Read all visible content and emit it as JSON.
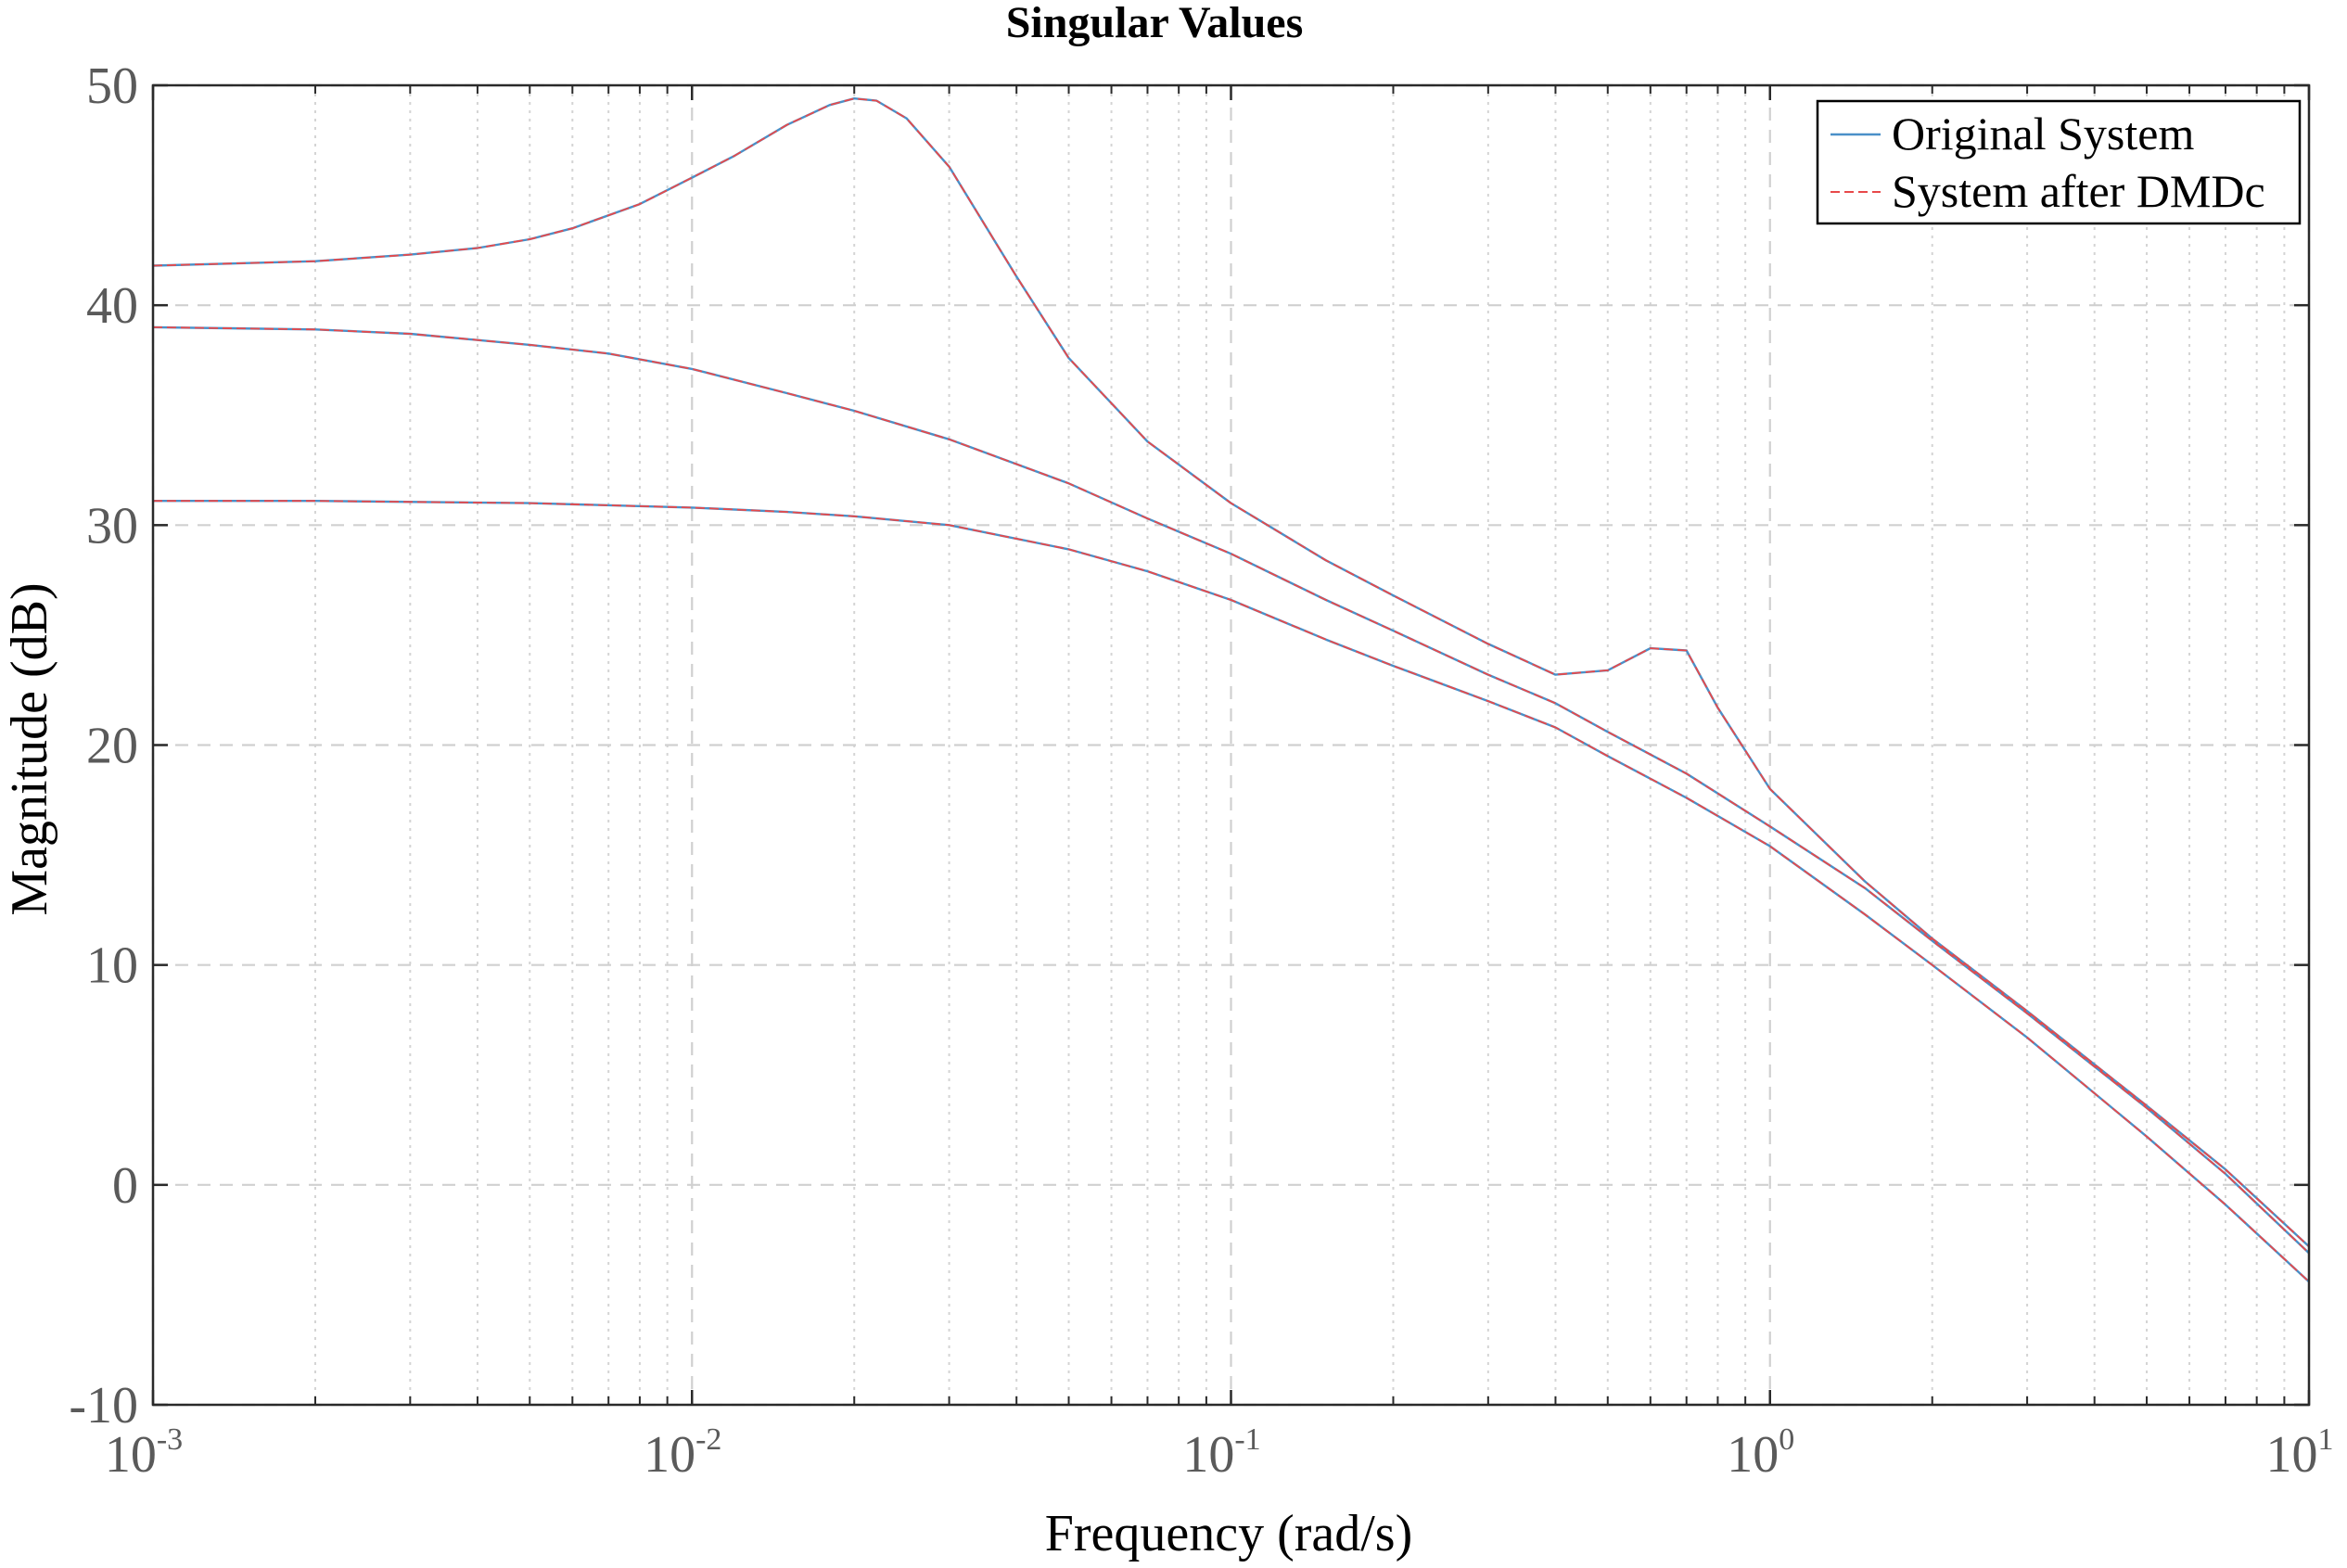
{
  "chart_data": {
    "type": "line",
    "title": "Singular Values",
    "xlabel": "Frequency (rad/s)",
    "ylabel": "Magnitude (dB)",
    "xscale": "log",
    "xlim": [
      0.001,
      10
    ],
    "ylim": [
      -10,
      50
    ],
    "x_ticks": [
      {
        "base": "10",
        "exp": "-3",
        "value": 0.001
      },
      {
        "base": "10",
        "exp": "-2",
        "value": 0.01
      },
      {
        "base": "10",
        "exp": "-1",
        "value": 0.1
      },
      {
        "base": "10",
        "exp": "0",
        "value": 1
      },
      {
        "base": "10",
        "exp": "1",
        "value": 10
      }
    ],
    "y_ticks": [
      {
        "label": "-10",
        "value": -10
      },
      {
        "label": "0",
        "value": 0
      },
      {
        "label": "10",
        "value": 10
      },
      {
        "label": "20",
        "value": 20
      },
      {
        "label": "30",
        "value": 30
      },
      {
        "label": "40",
        "value": 40
      },
      {
        "label": "50",
        "value": 50
      }
    ],
    "grid": true,
    "minor_grid": true,
    "legend_position": "top-right",
    "legend": [
      "Original System",
      "System after DMDc"
    ],
    "colors": {
      "original": "#4a90c8",
      "dmdc": "#e8494a"
    },
    "series": [
      {
        "name": "Original System",
        "x": [
          0.001,
          0.002,
          0.003,
          0.004,
          0.005,
          0.006,
          0.008,
          0.01,
          0.012,
          0.015,
          0.018,
          0.02,
          0.022,
          0.025,
          0.03,
          0.04,
          0.05,
          0.07,
          0.1,
          0.15,
          0.2,
          0.3,
          0.4,
          0.5,
          0.6,
          0.7,
          0.8,
          1,
          1.5,
          2,
          3,
          5,
          7,
          10
        ],
        "y": [
          41.8,
          42.0,
          42.3,
          42.6,
          43.0,
          43.5,
          44.6,
          45.8,
          46.8,
          48.2,
          49.1,
          49.4,
          49.3,
          48.5,
          46.3,
          41.3,
          37.6,
          33.8,
          31.0,
          28.4,
          26.8,
          24.6,
          23.2,
          23.4,
          24.4,
          24.3,
          21.7,
          18.0,
          13.8,
          11.2,
          7.9,
          3.6,
          0.7,
          -2.8
        ]
      },
      {
        "name": "Original System",
        "x": [
          0.001,
          0.002,
          0.003,
          0.005,
          0.007,
          0.01,
          0.015,
          0.02,
          0.03,
          0.05,
          0.07,
          0.1,
          0.15,
          0.2,
          0.3,
          0.4,
          0.5,
          0.7,
          1,
          1.5,
          2,
          3,
          5,
          7,
          10
        ],
        "y": [
          39.0,
          38.9,
          38.7,
          38.2,
          37.8,
          37.1,
          36.0,
          35.2,
          33.9,
          31.9,
          30.3,
          28.7,
          26.6,
          25.2,
          23.2,
          21.9,
          20.6,
          18.7,
          16.3,
          13.5,
          11.1,
          7.8,
          3.5,
          0.5,
          -3.1
        ]
      },
      {
        "name": "Original System",
        "x": [
          0.001,
          0.002,
          0.005,
          0.01,
          0.015,
          0.02,
          0.03,
          0.05,
          0.07,
          0.1,
          0.15,
          0.2,
          0.3,
          0.4,
          0.5,
          0.7,
          1,
          1.5,
          2,
          3,
          5,
          7,
          10
        ],
        "y": [
          31.1,
          31.1,
          31.0,
          30.8,
          30.6,
          30.4,
          30.0,
          28.9,
          27.9,
          26.6,
          24.8,
          23.6,
          22.0,
          20.8,
          19.5,
          17.6,
          15.4,
          12.3,
          10.0,
          6.7,
          2.2,
          -0.9,
          -4.4
        ]
      },
      {
        "name": "System after DMDc",
        "x": [
          0.001,
          0.002,
          0.003,
          0.004,
          0.005,
          0.006,
          0.008,
          0.01,
          0.012,
          0.015,
          0.018,
          0.02,
          0.022,
          0.025,
          0.03,
          0.04,
          0.05,
          0.07,
          0.1,
          0.15,
          0.2,
          0.3,
          0.4,
          0.5,
          0.6,
          0.7,
          0.8,
          1,
          1.5,
          2,
          3,
          5,
          7,
          10
        ],
        "y": [
          41.8,
          42.0,
          42.3,
          42.6,
          43.0,
          43.5,
          44.6,
          45.8,
          46.8,
          48.2,
          49.1,
          49.4,
          49.3,
          48.5,
          46.3,
          41.3,
          37.6,
          33.8,
          31.0,
          28.4,
          26.8,
          24.6,
          23.2,
          23.4,
          24.4,
          24.3,
          21.7,
          18.0,
          13.8,
          11.2,
          7.9,
          3.6,
          0.7,
          -2.8
        ]
      },
      {
        "name": "System after DMDc",
        "x": [
          0.001,
          0.002,
          0.003,
          0.005,
          0.007,
          0.01,
          0.015,
          0.02,
          0.03,
          0.05,
          0.07,
          0.1,
          0.15,
          0.2,
          0.3,
          0.4,
          0.5,
          0.7,
          1,
          1.5,
          2,
          3,
          5,
          7,
          10
        ],
        "y": [
          39.0,
          38.9,
          38.7,
          38.2,
          37.8,
          37.1,
          36.0,
          35.2,
          33.9,
          31.9,
          30.3,
          28.7,
          26.6,
          25.2,
          23.2,
          21.9,
          20.6,
          18.7,
          16.3,
          13.5,
          11.1,
          7.8,
          3.5,
          0.5,
          -3.1
        ]
      },
      {
        "name": "System after DMDc",
        "x": [
          0.001,
          0.002,
          0.005,
          0.01,
          0.015,
          0.02,
          0.03,
          0.05,
          0.07,
          0.1,
          0.15,
          0.2,
          0.3,
          0.4,
          0.5,
          0.7,
          1,
          1.5,
          2,
          3,
          5,
          7,
          10
        ],
        "y": [
          31.1,
          31.1,
          31.0,
          30.8,
          30.6,
          30.4,
          30.0,
          28.9,
          27.9,
          26.6,
          24.8,
          23.6,
          22.0,
          20.8,
          19.5,
          17.6,
          15.4,
          12.3,
          10.0,
          6.7,
          2.2,
          -0.9,
          -4.4
        ]
      }
    ]
  }
}
